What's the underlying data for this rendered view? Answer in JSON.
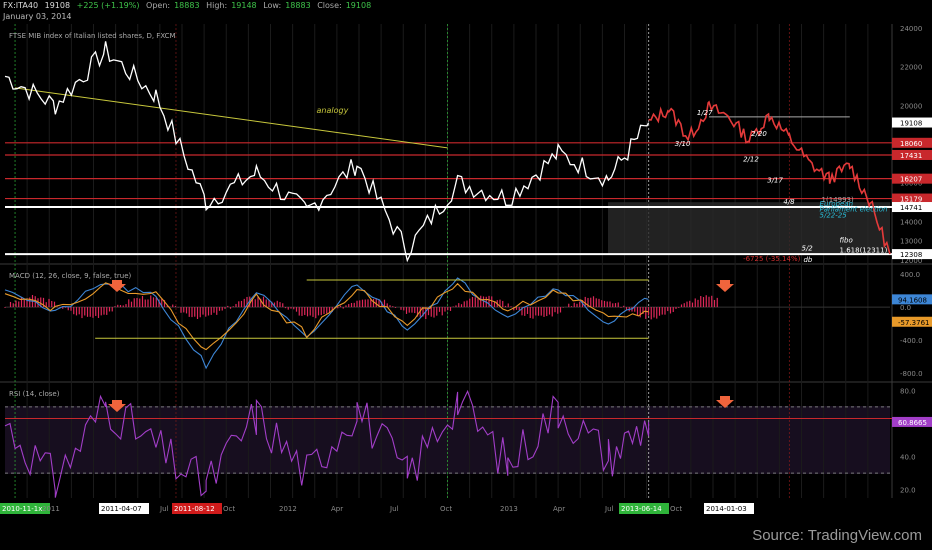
{
  "header": {
    "symbol": "FX:ITA40",
    "last": "19108",
    "change": "+225 (+1.19%)",
    "open_label": "Open:",
    "open": "18883",
    "high_label": "High:",
    "high": "19148",
    "low_label": "Low:",
    "low": "18883",
    "close_label": "Close:",
    "close": "19108",
    "date": "January 03, 2014"
  },
  "source": "Source: TradingView.com",
  "colors": {
    "price": "#ffffff",
    "price_recent": "#e43a3a",
    "macd_line": "#3d86d6",
    "signal_line": "#e89a2a",
    "histogram": "#e0285a",
    "rsi": "#a23ec8",
    "hline_red": "#c8282c",
    "support": "#ffffff",
    "analogy": "#c8c83c",
    "annotation": "#ffffff",
    "election": "#29c0dc",
    "down_arrow": "#f0643c"
  },
  "chart_data": [
    {
      "type": "line",
      "title": "FTSE MIB index of Italian listed shares, D, FXCM",
      "y_scale": "linear",
      "ylim": [
        11900,
        24200
      ],
      "y_ticks": [
        24000,
        22000,
        20000,
        18000,
        16000,
        14000,
        13000,
        12000
      ],
      "x_tick_labels": [
        "2010-11-1x",
        "2011",
        "2011-04-07",
        "Jul",
        "2011-08-12",
        "Oct",
        "2012",
        "Apr",
        "Jul",
        "Oct",
        "2013",
        "Apr",
        "Jul",
        "2013-06-14",
        "Oct",
        "2014-01-03"
      ],
      "highlighted_dates": [
        {
          "label": "2010-11-1x",
          "color": "#2fb43a"
        },
        {
          "label": "2011-04-07",
          "color": "#ffffff"
        },
        {
          "label": "2011-08-12",
          "color": "#d01b1b"
        },
        {
          "label": "2013-06-14",
          "color": "#2fb43a"
        },
        {
          "label": "2014-01-03",
          "color": "#ffffff"
        }
      ],
      "x": [
        0,
        5,
        10,
        15,
        20,
        25,
        30,
        35,
        40,
        45,
        50,
        55,
        60,
        64
      ],
      "y": [
        21500,
        20000,
        22800,
        20500,
        15000,
        16500,
        14500,
        17000,
        12500,
        16000,
        15200,
        17500,
        16200,
        19100
      ],
      "series": [
        {
          "name": "price",
          "color": "#ffffff"
        },
        {
          "name": "projection",
          "color": "#e43a3a"
        }
      ],
      "projection": {
        "x": [
          64,
          66,
          68,
          70,
          72,
          74,
          76,
          78,
          80,
          82,
          84,
          86,
          88
        ],
        "y": [
          19100,
          19800,
          18300,
          19900,
          19400,
          18200,
          19500,
          18300,
          17000,
          16200,
          16900,
          15000,
          12311
        ]
      },
      "price_levels": [
        {
          "value": "18060",
          "color": "#c8282c"
        },
        {
          "value": "17431",
          "color": "#c8282c"
        },
        {
          "value": "16207",
          "color": "#c8282c"
        },
        {
          "value": "15179",
          "color": "#c8282c"
        },
        {
          "value": "14741",
          "color": "#ffffff"
        },
        {
          "value": "12308",
          "color": "#ffffff"
        }
      ],
      "last_price_tag": "19108",
      "annotations": [
        {
          "text": "analogy",
          "color": "#c8c83c"
        },
        {
          "text": "1/27",
          "color": "#ffffff"
        },
        {
          "text": "2/20",
          "color": "#ffffff"
        },
        {
          "text": "3/10",
          "color": "#ffffff"
        },
        {
          "text": "2/12",
          "color": "#ffffff"
        },
        {
          "text": "3/17",
          "color": "#ffffff"
        },
        {
          "text": "4/8",
          "color": "#ffffff"
        },
        {
          "text": "5/2",
          "color": "#ffffff"
        },
        {
          "text": "db",
          "color": "#ffffff"
        },
        {
          "text": "1(14993)",
          "color": "#aaaaaa"
        },
        {
          "text": "fibo",
          "color": "#ffffff"
        },
        {
          "text": "1.618(12311)",
          "color": "#ffffff"
        },
        {
          "text": "European",
          "color": "#29c0dc"
        },
        {
          "text": "Parliament election",
          "color": "#29c0dc"
        },
        {
          "text": "5/22-25",
          "color": "#29c0dc"
        },
        {
          "text": "-6725 (-35.14%)",
          "color": "#d03030"
        }
      ]
    },
    {
      "type": "line",
      "title": "MACD (12, 26, close, 9, false, true)",
      "y_ticks": [
        400.0,
        0.0,
        -400.0,
        -800.0
      ],
      "last_values": [
        {
          "label": "94.1608",
          "color": "#3d86d6"
        },
        {
          "label": "-57.3761",
          "color": "#e89a2a"
        }
      ],
      "x": [
        0,
        5,
        10,
        15,
        20,
        25,
        30,
        35,
        40,
        45,
        50,
        55,
        60,
        64
      ],
      "series": [
        {
          "name": "macd",
          "values": [
            250,
            -80,
            300,
            120,
            -700,
            200,
            -400,
            300,
            -250,
            320,
            -100,
            250,
            -200,
            94
          ],
          "color": "#3d86d6"
        },
        {
          "name": "signal",
          "values": [
            200,
            -20,
            250,
            160,
            -550,
            120,
            -330,
            220,
            -180,
            260,
            -40,
            200,
            -150,
            -57
          ],
          "color": "#e89a2a"
        }
      ]
    },
    {
      "type": "line",
      "title": "RSI (14, close)",
      "y_ticks": [
        80.0,
        40.0,
        20.0
      ],
      "guides": [
        70,
        30
      ],
      "last_value": "60.8665",
      "x": [
        0,
        5,
        10,
        15,
        20,
        25,
        30,
        35,
        40,
        45,
        50,
        55,
        60,
        64
      ],
      "series": [
        {
          "name": "rsi",
          "values": [
            60,
            25,
            72,
            45,
            22,
            65,
            30,
            70,
            28,
            75,
            35,
            70,
            40,
            60.9
          ],
          "color": "#a23ec8"
        }
      ]
    }
  ]
}
